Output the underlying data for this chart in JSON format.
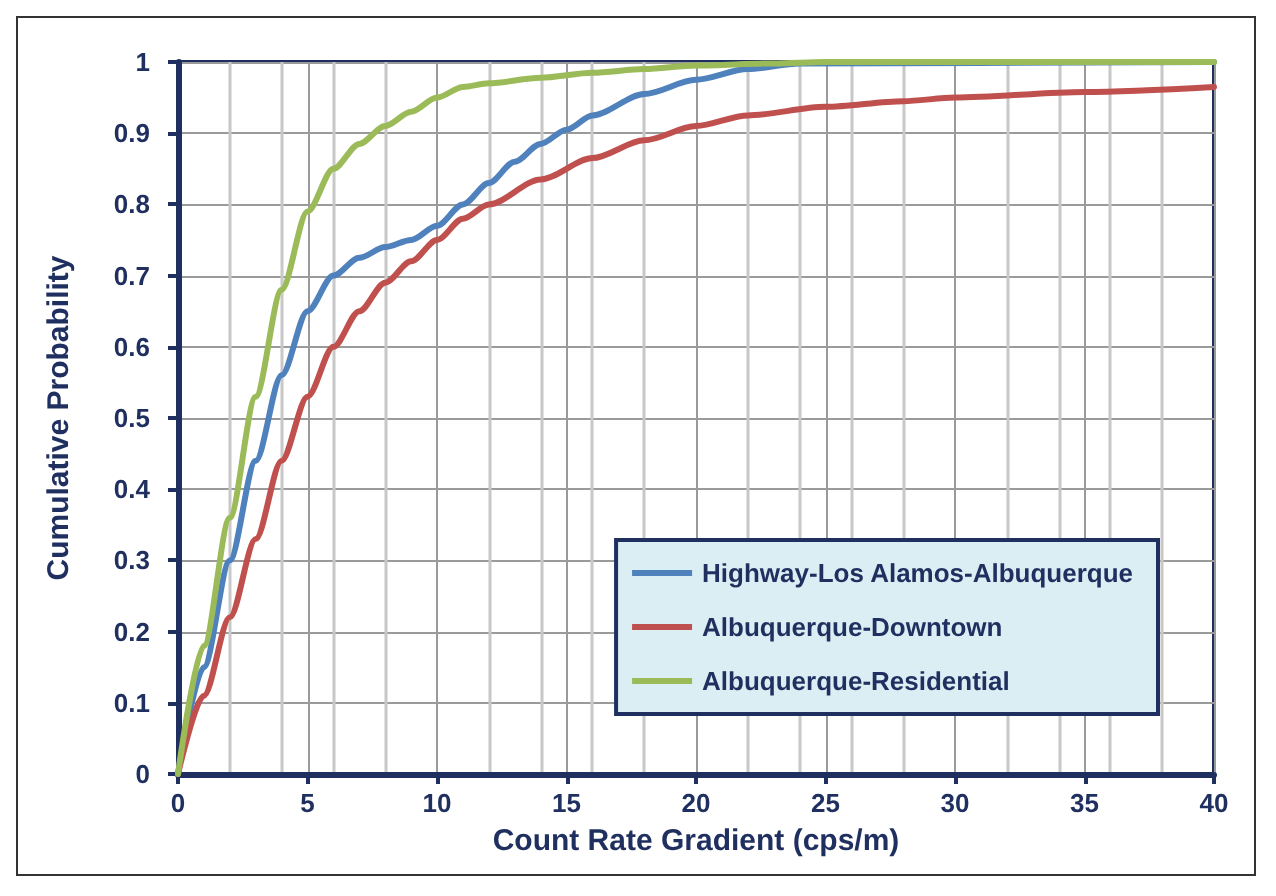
{
  "chart_data": {
    "type": "line",
    "xlabel": "Count Rate Gradient (cps/m)",
    "ylabel": "Cumulative Probability",
    "xlim": [
      0,
      40
    ],
    "xticks": [
      0,
      5,
      10,
      15,
      20,
      25,
      30,
      35,
      40
    ],
    "ylim": [
      0,
      1
    ],
    "yticks": [
      0,
      0.1,
      0.2,
      0.3,
      0.4,
      0.5,
      0.6,
      0.7,
      0.8,
      0.9,
      1
    ],
    "grid": true,
    "legend": "bottom right",
    "marker": "none",
    "line_style": "solid",
    "series": [
      {
        "name": "Highway-Los Alamos-Albuquerque",
        "color": "#4f81bd",
        "x": [
          0,
          1,
          2,
          3,
          4,
          5,
          6,
          7,
          8,
          9,
          10,
          11,
          12,
          13,
          14,
          15,
          16,
          18,
          20,
          22,
          24,
          40
        ],
        "values": [
          0,
          0.15,
          0.3,
          0.44,
          0.56,
          0.65,
          0.7,
          0.725,
          0.74,
          0.75,
          0.77,
          0.8,
          0.83,
          0.86,
          0.885,
          0.905,
          0.925,
          0.955,
          0.975,
          0.99,
          0.998,
          1
        ]
      },
      {
        "name": "Albuquerque-Downtown",
        "color": "#c0504d",
        "x": [
          0,
          1,
          2,
          3,
          4,
          5,
          6,
          7,
          8,
          9,
          10,
          11,
          12,
          14,
          16,
          18,
          20,
          22,
          25,
          28,
          30,
          35,
          40
        ],
        "values": [
          0,
          0.11,
          0.22,
          0.33,
          0.44,
          0.53,
          0.6,
          0.65,
          0.69,
          0.72,
          0.75,
          0.78,
          0.8,
          0.835,
          0.865,
          0.89,
          0.91,
          0.925,
          0.937,
          0.945,
          0.95,
          0.958,
          0.965
        ]
      },
      {
        "name": "Albuquerque-Residential",
        "color": "#9bbb59",
        "x": [
          0,
          1,
          2,
          3,
          4,
          5,
          6,
          7,
          8,
          9,
          10,
          11,
          12,
          14,
          16,
          18,
          20,
          23,
          25,
          40
        ],
        "values": [
          0,
          0.18,
          0.36,
          0.53,
          0.68,
          0.79,
          0.85,
          0.885,
          0.91,
          0.93,
          0.95,
          0.965,
          0.97,
          0.978,
          0.985,
          0.99,
          0.995,
          0.998,
          1,
          1
        ]
      }
    ]
  }
}
